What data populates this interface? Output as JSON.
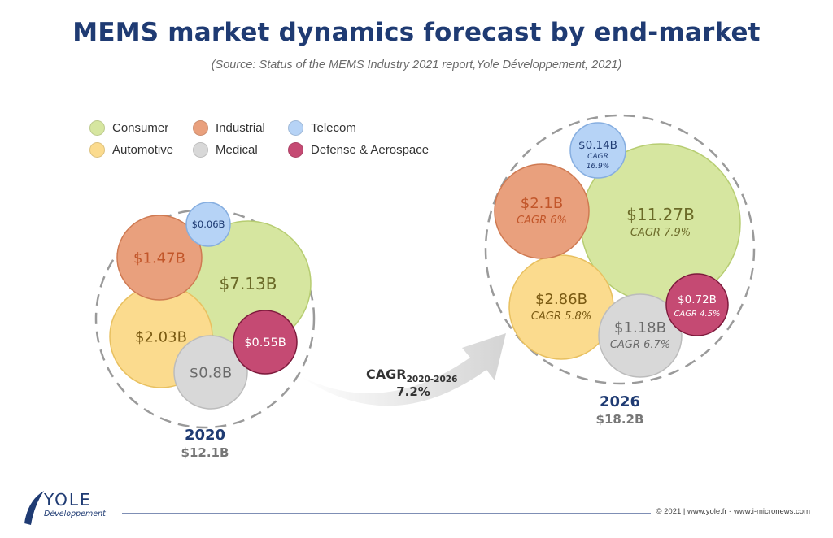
{
  "title": "MEMS market dynamics forecast by end-market",
  "subtitle": "(Source: Status of the MEMS Industry 2021 report,Yole Développement, 2021)",
  "colors": {
    "Consumer": "#d6e6a0",
    "Automotive": "#fbdb8e",
    "Industrial": "#e9a07d",
    "Medical": "#d8d8d8",
    "Telecom": "#b6d3f6",
    "Defense & Aerospace": "#c54a73",
    "title": "#1f3b73"
  },
  "legend": [
    "Consumer",
    "Industrial",
    "Telecom",
    "Automotive",
    "Medical",
    "Defense & Aerospace"
  ],
  "years": [
    {
      "year": "2020",
      "total": "$12.1B",
      "bubbles": [
        {
          "segment": "Consumer",
          "value": "$7.13B",
          "cagr": ""
        },
        {
          "segment": "Automotive",
          "value": "$2.03B",
          "cagr": ""
        },
        {
          "segment": "Industrial",
          "value": "$1.47B",
          "cagr": ""
        },
        {
          "segment": "Medical",
          "value": "$0.8B",
          "cagr": ""
        },
        {
          "segment": "Defense & Aerospace",
          "value": "$0.55B",
          "cagr": ""
        },
        {
          "segment": "Telecom",
          "value": "$0.06B",
          "cagr": ""
        }
      ]
    },
    {
      "year": "2026",
      "total": "$18.2B",
      "bubbles": [
        {
          "segment": "Consumer",
          "value": "$11.27B",
          "cagr": "CAGR 7.9%"
        },
        {
          "segment": "Automotive",
          "value": "$2.86B",
          "cagr": "CAGR 5.8%"
        },
        {
          "segment": "Industrial",
          "value": "$2.1B",
          "cagr": "CAGR 6%"
        },
        {
          "segment": "Medical",
          "value": "$1.18B",
          "cagr": "CAGR 6.7%"
        },
        {
          "segment": "Defense & Aerospace",
          "value": "$0.72B",
          "cagr": "CAGR 4.5%"
        },
        {
          "segment": "Telecom",
          "value": "$0.14B",
          "cagr": "CAGR 16.9%"
        }
      ]
    }
  ],
  "overall_growth": {
    "label": "CAGR",
    "period": "2020-2026",
    "value": "7.2%"
  },
  "logo": {
    "name": "YOLE",
    "sub": "Développement"
  },
  "footer": "© 2021 | www.yole.fr - www.i-micronews.com"
}
